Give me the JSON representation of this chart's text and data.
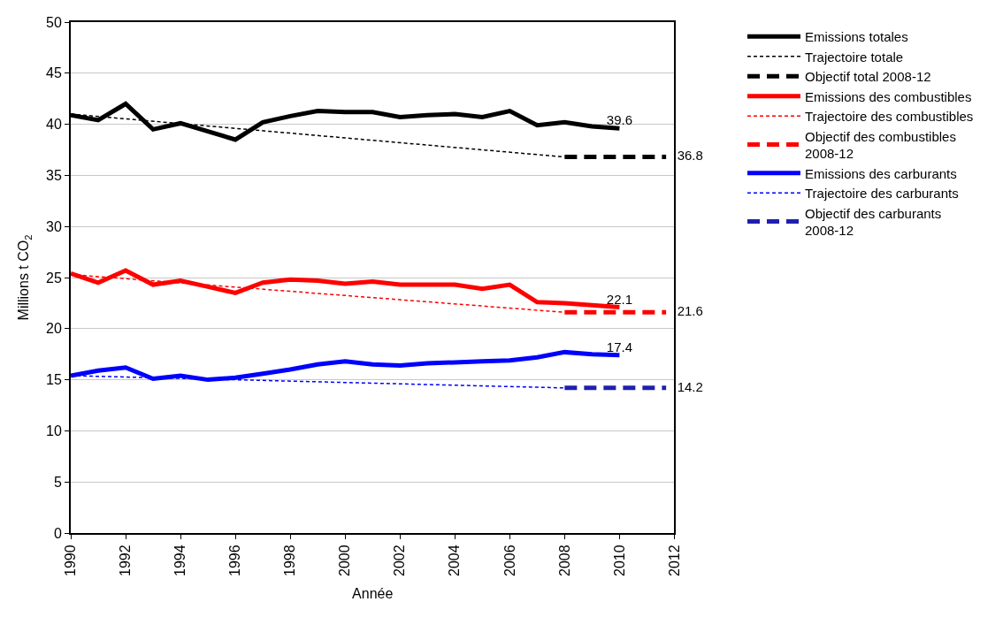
{
  "chart_data": {
    "type": "line",
    "xlabel": "Année",
    "ylabel": "Millions t CO$_{2}$",
    "xlim": [
      1990,
      2012
    ],
    "xticks": [
      1990,
      1992,
      1994,
      1996,
      1998,
      2000,
      2002,
      2004,
      2006,
      2008,
      2010,
      2012
    ],
    "ylim": [
      0,
      50
    ],
    "yticks": [
      0,
      5,
      10,
      15,
      20,
      25,
      30,
      35,
      40,
      45,
      50
    ],
    "grid": "y",
    "legend": "right",
    "series": [
      {
        "name": "Emissions totales",
        "color": "#000000",
        "line_style": "solid",
        "x": [
          1990,
          1991,
          1992,
          1993,
          1994,
          1995,
          1996,
          1997,
          1998,
          1999,
          2000,
          2001,
          2002,
          2003,
          2004,
          2005,
          2006,
          2007,
          2008,
          2009,
          2010
        ],
        "values": [
          40.9,
          40.4,
          42.0,
          39.5,
          40.1,
          39.3,
          38.5,
          40.2,
          40.8,
          41.3,
          41.2,
          41.2,
          40.7,
          40.9,
          41.0,
          40.7,
          41.3,
          39.9,
          40.2,
          39.8,
          39.6
        ],
        "value_labels": [
          null,
          null,
          null,
          null,
          null,
          null,
          null,
          null,
          null,
          null,
          null,
          null,
          null,
          null,
          null,
          null,
          null,
          null,
          null,
          null,
          "39.6"
        ]
      },
      {
        "name": "Trajectoire totale",
        "color": "#000000",
        "line_style": "dotted",
        "x": [
          1990,
          2008
        ],
        "values": [
          41.0,
          36.8
        ]
      },
      {
        "name": "Objectif total 2008-12",
        "color": "#000000",
        "line_style": "dashed",
        "x": [
          2008,
          2011.7
        ],
        "values": [
          36.8,
          36.8
        ],
        "value_labels": [
          null,
          "36.8"
        ]
      },
      {
        "name": "Emissions des combustibles",
        "color": "#ff0000",
        "line_style": "solid",
        "x": [
          1990,
          1991,
          1992,
          1993,
          1994,
          1995,
          1996,
          1997,
          1998,
          1999,
          2000,
          2001,
          2002,
          2003,
          2004,
          2005,
          2006,
          2007,
          2008,
          2009,
          2010
        ],
        "values": [
          25.4,
          24.5,
          25.7,
          24.3,
          24.7,
          24.1,
          23.5,
          24.5,
          24.8,
          24.7,
          24.4,
          24.6,
          24.3,
          24.3,
          24.3,
          23.9,
          24.3,
          22.6,
          22.5,
          22.3,
          22.1
        ],
        "value_labels": [
          null,
          null,
          null,
          null,
          null,
          null,
          null,
          null,
          null,
          null,
          null,
          null,
          null,
          null,
          null,
          null,
          null,
          null,
          null,
          null,
          "22.1"
        ]
      },
      {
        "name": "Trajectoire des combustibles",
        "color": "#ff0000",
        "line_style": "dotted",
        "x": [
          1990,
          2008
        ],
        "values": [
          25.3,
          21.6
        ]
      },
      {
        "name": "Objectif des combustibles\n2008-12",
        "color": "#ff0000",
        "line_style": "dashed",
        "x": [
          2008,
          2011.7
        ],
        "values": [
          21.6,
          21.6
        ],
        "value_labels": [
          null,
          "21.6"
        ]
      },
      {
        "name": "Emissions des carburants",
        "color": "#0000ff",
        "line_style": "solid",
        "x": [
          1990,
          1991,
          1992,
          1993,
          1994,
          1995,
          1996,
          1997,
          1998,
          1999,
          2000,
          2001,
          2002,
          2003,
          2004,
          2005,
          2006,
          2007,
          2008,
          2009,
          2010
        ],
        "values": [
          15.4,
          15.9,
          16.2,
          15.1,
          15.4,
          15.0,
          15.2,
          15.6,
          16.0,
          16.5,
          16.8,
          16.5,
          16.4,
          16.6,
          16.7,
          16.8,
          16.9,
          17.2,
          17.7,
          17.5,
          17.4
        ],
        "value_labels": [
          null,
          null,
          null,
          null,
          null,
          null,
          null,
          null,
          null,
          null,
          null,
          null,
          null,
          null,
          null,
          null,
          null,
          null,
          null,
          null,
          "17.4"
        ]
      },
      {
        "name": "Trajectoire des carburants",
        "color": "#0000ff",
        "line_style": "dotted",
        "x": [
          1990,
          2008
        ],
        "values": [
          15.4,
          14.2
        ]
      },
      {
        "name": "Objectif des carburants\n2008-12",
        "color": "#1f1fb0",
        "line_style": "dashed",
        "x": [
          2008,
          2011.7
        ],
        "values": [
          14.2,
          14.2
        ],
        "value_labels": [
          null,
          "14.2"
        ]
      }
    ]
  }
}
